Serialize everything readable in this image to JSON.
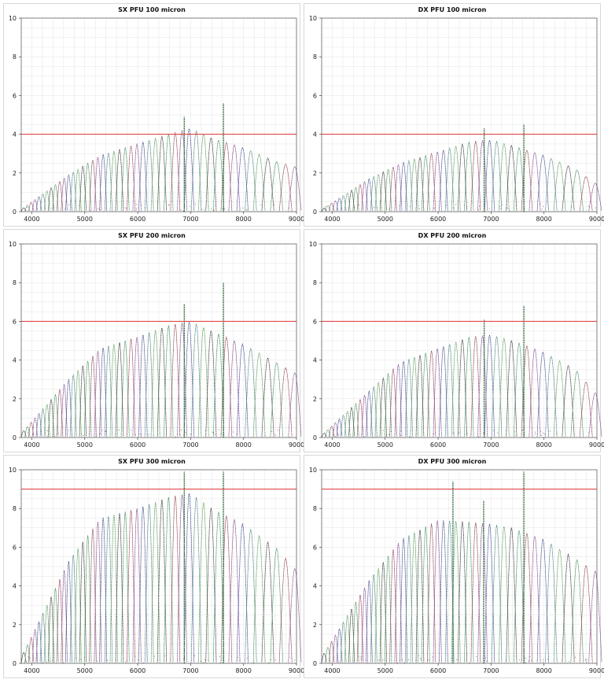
{
  "chart_data": [
    {
      "type": "scatter",
      "title": "SX PFU 100 micron",
      "xlim": [
        3800,
        9000
      ],
      "ylim": [
        0,
        10
      ],
      "x_ticks": [
        "4000",
        "5000",
        "6000",
        "7000",
        "8000",
        "9000"
      ],
      "y_ticks": [
        "0",
        "2",
        "4",
        "6",
        "8",
        "10"
      ],
      "threshold": 4,
      "envelope_peaks": [
        [
          3800,
          0.1
        ],
        [
          4700,
          1.9
        ],
        [
          5300,
          2.9
        ],
        [
          6000,
          3.5
        ],
        [
          6600,
          4.0
        ],
        [
          7000,
          4.3
        ],
        [
          7400,
          3.8
        ],
        [
          8000,
          3.3
        ],
        [
          8600,
          2.6
        ],
        [
          9000,
          2.3
        ]
      ],
      "spikes": [
        [
          6880,
          4.9
        ],
        [
          7620,
          5.6
        ]
      ],
      "grid": true
    },
    {
      "type": "scatter",
      "title": "DX PFU 100 micron",
      "xlim": [
        3800,
        9000
      ],
      "ylim": [
        0,
        10
      ],
      "x_ticks": [
        "4000",
        "5000",
        "6000",
        "7000",
        "8000",
        "9000"
      ],
      "y_ticks": [
        "0",
        "2",
        "4",
        "6",
        "8",
        "10"
      ],
      "threshold": 4,
      "envelope_peaks": [
        [
          3800,
          0.1
        ],
        [
          4700,
          1.7
        ],
        [
          5300,
          2.5
        ],
        [
          6000,
          3.1
        ],
        [
          6600,
          3.6
        ],
        [
          7000,
          3.7
        ],
        [
          7400,
          3.4
        ],
        [
          8000,
          2.9
        ],
        [
          8600,
          2.2
        ],
        [
          9000,
          1.4
        ]
      ],
      "spikes": [
        [
          6870,
          4.3
        ],
        [
          7620,
          4.5
        ]
      ],
      "grid": true
    },
    {
      "type": "scatter",
      "title": "SX PFU 200 micron",
      "xlim": [
        3800,
        9000
      ],
      "ylim": [
        0,
        10
      ],
      "x_ticks": [
        "4000",
        "5000",
        "6000",
        "7000",
        "8000",
        "9000"
      ],
      "y_ticks": [
        "0",
        "2",
        "4",
        "6",
        "8",
        "10"
      ],
      "threshold": 6,
      "envelope_peaks": [
        [
          3800,
          0.2
        ],
        [
          4700,
          3.0
        ],
        [
          5300,
          4.6
        ],
        [
          6000,
          5.2
        ],
        [
          6600,
          5.8
        ],
        [
          7000,
          6.0
        ],
        [
          7400,
          5.5
        ],
        [
          8000,
          4.8
        ],
        [
          8600,
          3.9
        ],
        [
          9000,
          3.3
        ]
      ],
      "spikes": [
        [
          6880,
          6.9
        ],
        [
          7620,
          8.0
        ]
      ],
      "grid": true
    },
    {
      "type": "scatter",
      "title": "DX PFU 200 micron",
      "xlim": [
        3800,
        9000
      ],
      "ylim": [
        0,
        10
      ],
      "x_ticks": [
        "4000",
        "5000",
        "6000",
        "7000",
        "8000",
        "9000"
      ],
      "y_ticks": [
        "0",
        "2",
        "4",
        "6",
        "8",
        "10"
      ],
      "threshold": 6,
      "envelope_peaks": [
        [
          3800,
          0.1
        ],
        [
          4700,
          2.4
        ],
        [
          5300,
          3.9
        ],
        [
          6000,
          4.6
        ],
        [
          6600,
          5.2
        ],
        [
          7000,
          5.3
        ],
        [
          7400,
          5.0
        ],
        [
          8000,
          4.4
        ],
        [
          8600,
          3.5
        ],
        [
          9000,
          2.2
        ]
      ],
      "spikes": [
        [
          6870,
          6.1
        ],
        [
          7620,
          6.8
        ]
      ],
      "grid": true
    },
    {
      "type": "scatter",
      "title": "SX PFU 300 micron",
      "xlim": [
        3800,
        9000
      ],
      "ylim": [
        0,
        10
      ],
      "x_ticks": [
        "4000",
        "5000",
        "6000",
        "7000",
        "8000",
        "9000"
      ],
      "y_ticks": [
        "0",
        "2",
        "4",
        "6",
        "8",
        "10"
      ],
      "threshold": 9,
      "envelope_peaks": [
        [
          3800,
          0.3
        ],
        [
          4700,
          5.3
        ],
        [
          5300,
          7.5
        ],
        [
          6000,
          8.0
        ],
        [
          6600,
          8.6
        ],
        [
          7000,
          8.8
        ],
        [
          7400,
          8.0
        ],
        [
          8000,
          7.2
        ],
        [
          8600,
          6.0
        ],
        [
          9000,
          4.8
        ]
      ],
      "spikes": [
        [
          6880,
          9.9
        ],
        [
          7620,
          9.9
        ]
      ],
      "grid": true
    },
    {
      "type": "scatter",
      "title": "DX PFU 300 micron",
      "xlim": [
        3800,
        9000
      ],
      "ylim": [
        0,
        10
      ],
      "x_ticks": [
        "4000",
        "5000",
        "6000",
        "7000",
        "8000",
        "9000"
      ],
      "y_ticks": [
        "0",
        "2",
        "4",
        "6",
        "8",
        "10"
      ],
      "threshold": 9,
      "envelope_peaks": [
        [
          3800,
          0.3
        ],
        [
          4700,
          4.3
        ],
        [
          5300,
          6.4
        ],
        [
          6000,
          7.4
        ],
        [
          6600,
          7.3
        ],
        [
          7000,
          7.2
        ],
        [
          7400,
          7.0
        ],
        [
          8000,
          6.4
        ],
        [
          8600,
          5.4
        ],
        [
          9000,
          4.7
        ]
      ],
      "spikes": [
        [
          6280,
          9.4
        ],
        [
          6860,
          8.4
        ],
        [
          7620,
          9.9
        ]
      ],
      "grid": true
    }
  ],
  "colors": {
    "threshold": "#e03030",
    "grid": "#e4e4e4",
    "series": [
      "#111111",
      "#1a7a3a",
      "#7a1a2a",
      "#6a2a7a",
      "#1a2a7a",
      "#2a6a6a",
      "#3a8a3a"
    ]
  }
}
